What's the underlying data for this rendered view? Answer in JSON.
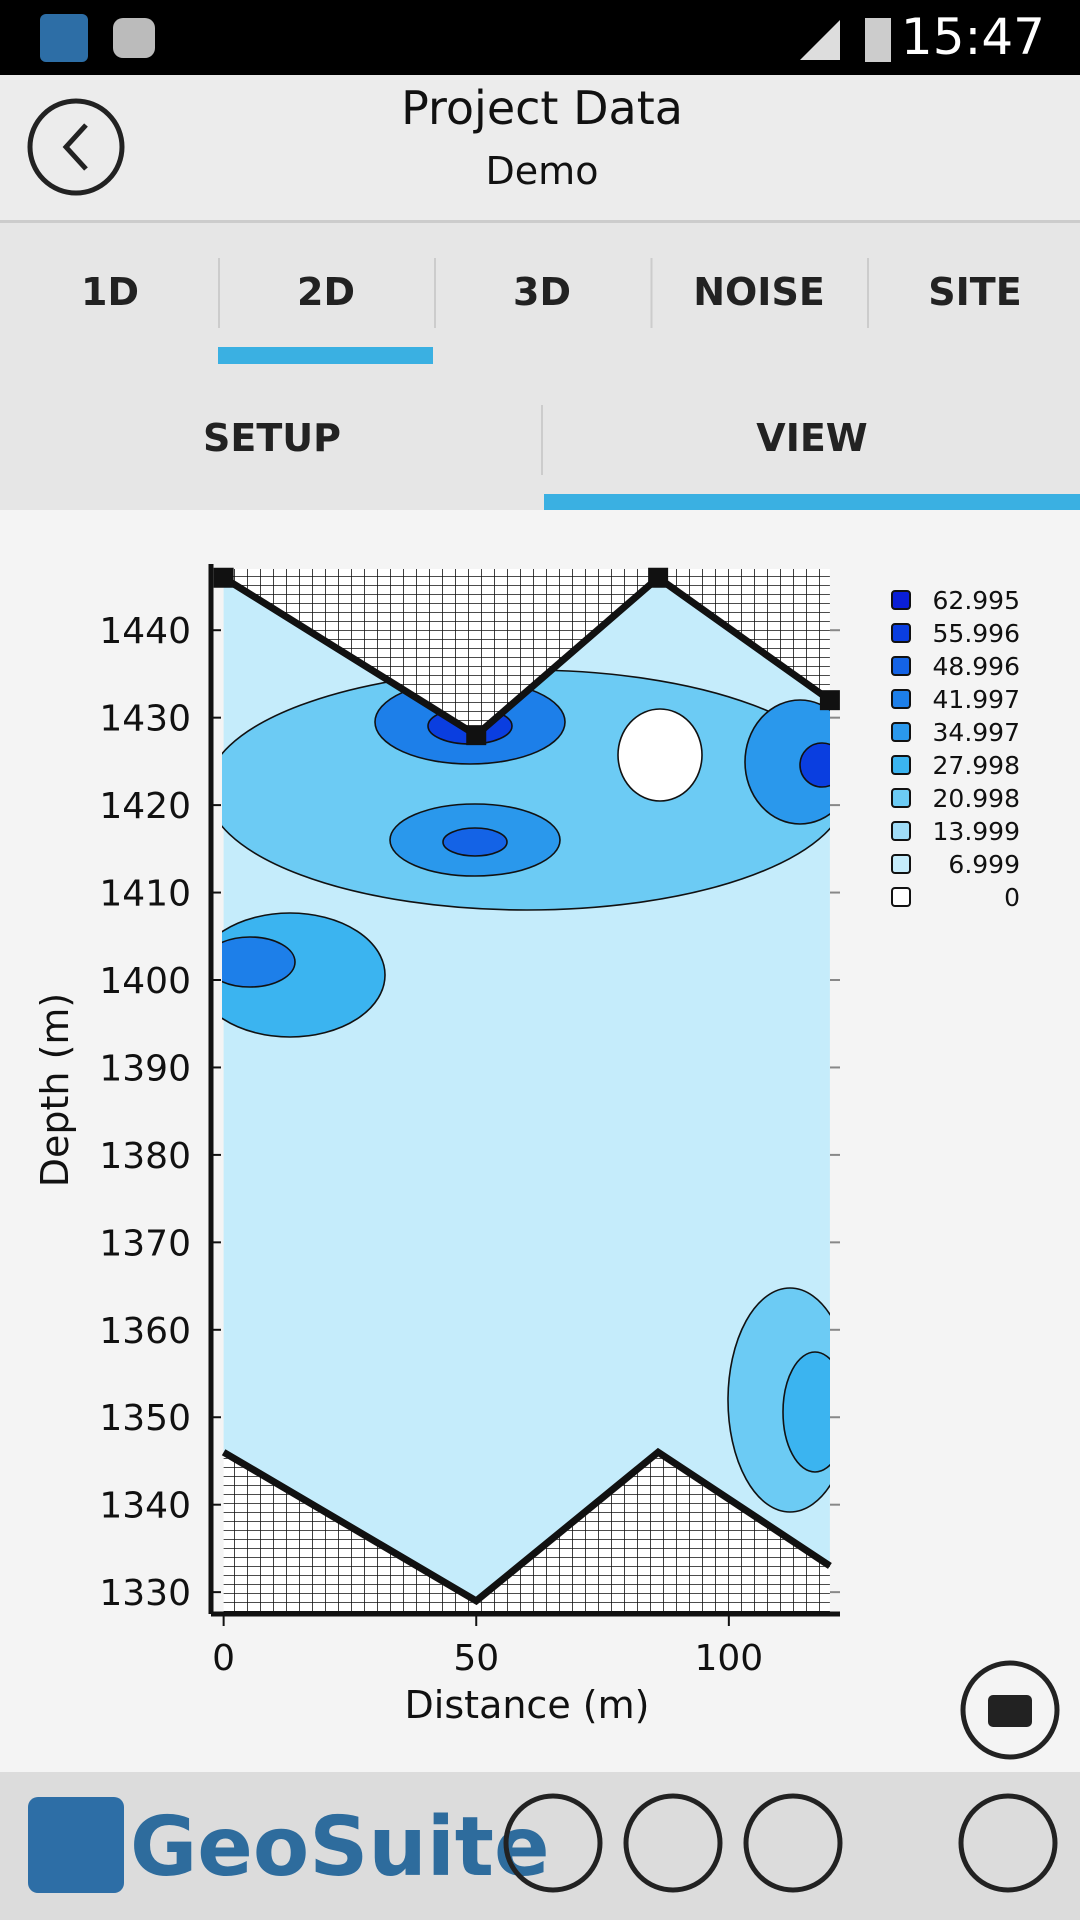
{
  "status_bar": {
    "time": "15:47"
  },
  "header": {
    "title": "Project Data",
    "subtitle": "Demo"
  },
  "tabs": [
    "1D",
    "2D",
    "3D",
    "NOISE",
    "SITE"
  ],
  "subtabs": [
    "SETUP",
    "VIEW"
  ],
  "chart_data": {
    "type": "contour",
    "xlabel": "Distance (m)",
    "ylabel": "Depth (m)",
    "xlim": [
      -2.5,
      122
    ],
    "ylim": [
      1327.5,
      1447
    ],
    "xticks": [
      0,
      50,
      100
    ],
    "yticks": [
      1330,
      1340,
      1350,
      1360,
      1370,
      1380,
      1390,
      1400,
      1410,
      1420,
      1430,
      1440
    ],
    "surface": {
      "x": [
        0,
        50,
        86,
        120
      ],
      "y": [
        1446,
        1428,
        1446,
        1432
      ]
    },
    "base": {
      "x": [
        0,
        50,
        86,
        120
      ],
      "y": [
        1346,
        1329,
        1346,
        1333
      ]
    },
    "legend": {
      "values": [
        62.995,
        55.996,
        48.996,
        41.997,
        34.997,
        27.998,
        20.998,
        13.999,
        6.999,
        0
      ],
      "colors": [
        "#0a1fd6",
        "#0a3ee0",
        "#1463e6",
        "#1d7fe9",
        "#2a98ec",
        "#3bb4f0",
        "#6ccbf4",
        "#a0dcf7",
        "#c5ecfb",
        "#ffffff"
      ]
    }
  },
  "footer": {
    "brand": "GeoSuite"
  }
}
